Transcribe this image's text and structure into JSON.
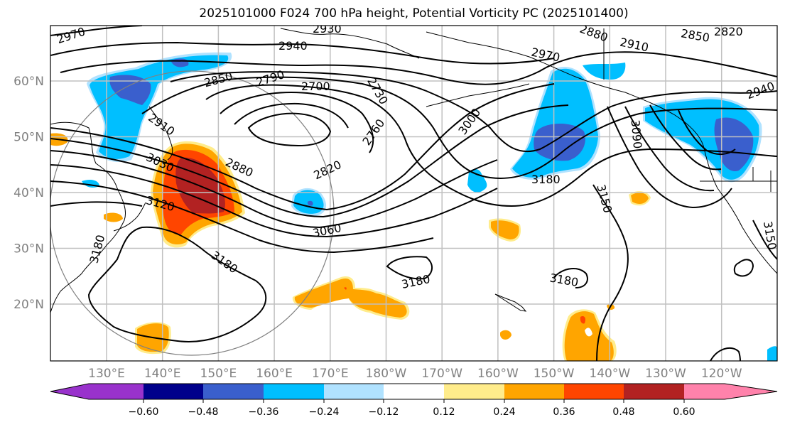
{
  "title": "2025101000 F024 700 hPa height, Potential Vorticity PC (2025101400)",
  "map": {
    "lat_labels": [
      "60°N",
      "50°N",
      "40°N",
      "30°N",
      "20°N"
    ],
    "lat_values": [
      60,
      50,
      40,
      30,
      20
    ],
    "lon_labels": [
      "130°E",
      "140°E",
      "150°E",
      "160°E",
      "170°E",
      "180°W",
      "170°W",
      "160°W",
      "150°W",
      "140°W",
      "130°W",
      "120°W"
    ],
    "lon_values": [
      130,
      140,
      150,
      160,
      170,
      180,
      190,
      200,
      210,
      220,
      230,
      240
    ],
    "grid_color": "#c0c0c0",
    "contour_labels": [
      "2970",
      "2930",
      "2940",
      "2850",
      "2790",
      "2700",
      "2730",
      "2910",
      "3030",
      "2880",
      "2760",
      "2820",
      "3000",
      "3120",
      "3060",
      "3180",
      "3180",
      "3180",
      "3180",
      "3150",
      "3090",
      "3180",
      "2880",
      "2910",
      "2970",
      "2850",
      "2820",
      "2940",
      "3150"
    ]
  },
  "colorbar": {
    "colors": [
      "#9932cc",
      "#00008b",
      "#3a5fcd",
      "#00bfff",
      "#b0e2ff",
      "#ffffff",
      "#ffec8b",
      "#ffa500",
      "#ff4500",
      "#b22222",
      "#ff82ab"
    ],
    "ticks": [
      "−0.60",
      "−0.48",
      "−0.36",
      "−0.24",
      "−0.12",
      "0.12",
      "0.24",
      "0.36",
      "0.48",
      "0.60"
    ],
    "levels": [
      -0.6,
      -0.48,
      -0.36,
      -0.24,
      -0.12,
      0.12,
      0.24,
      0.36,
      0.48,
      0.6
    ],
    "extend": "both"
  }
}
